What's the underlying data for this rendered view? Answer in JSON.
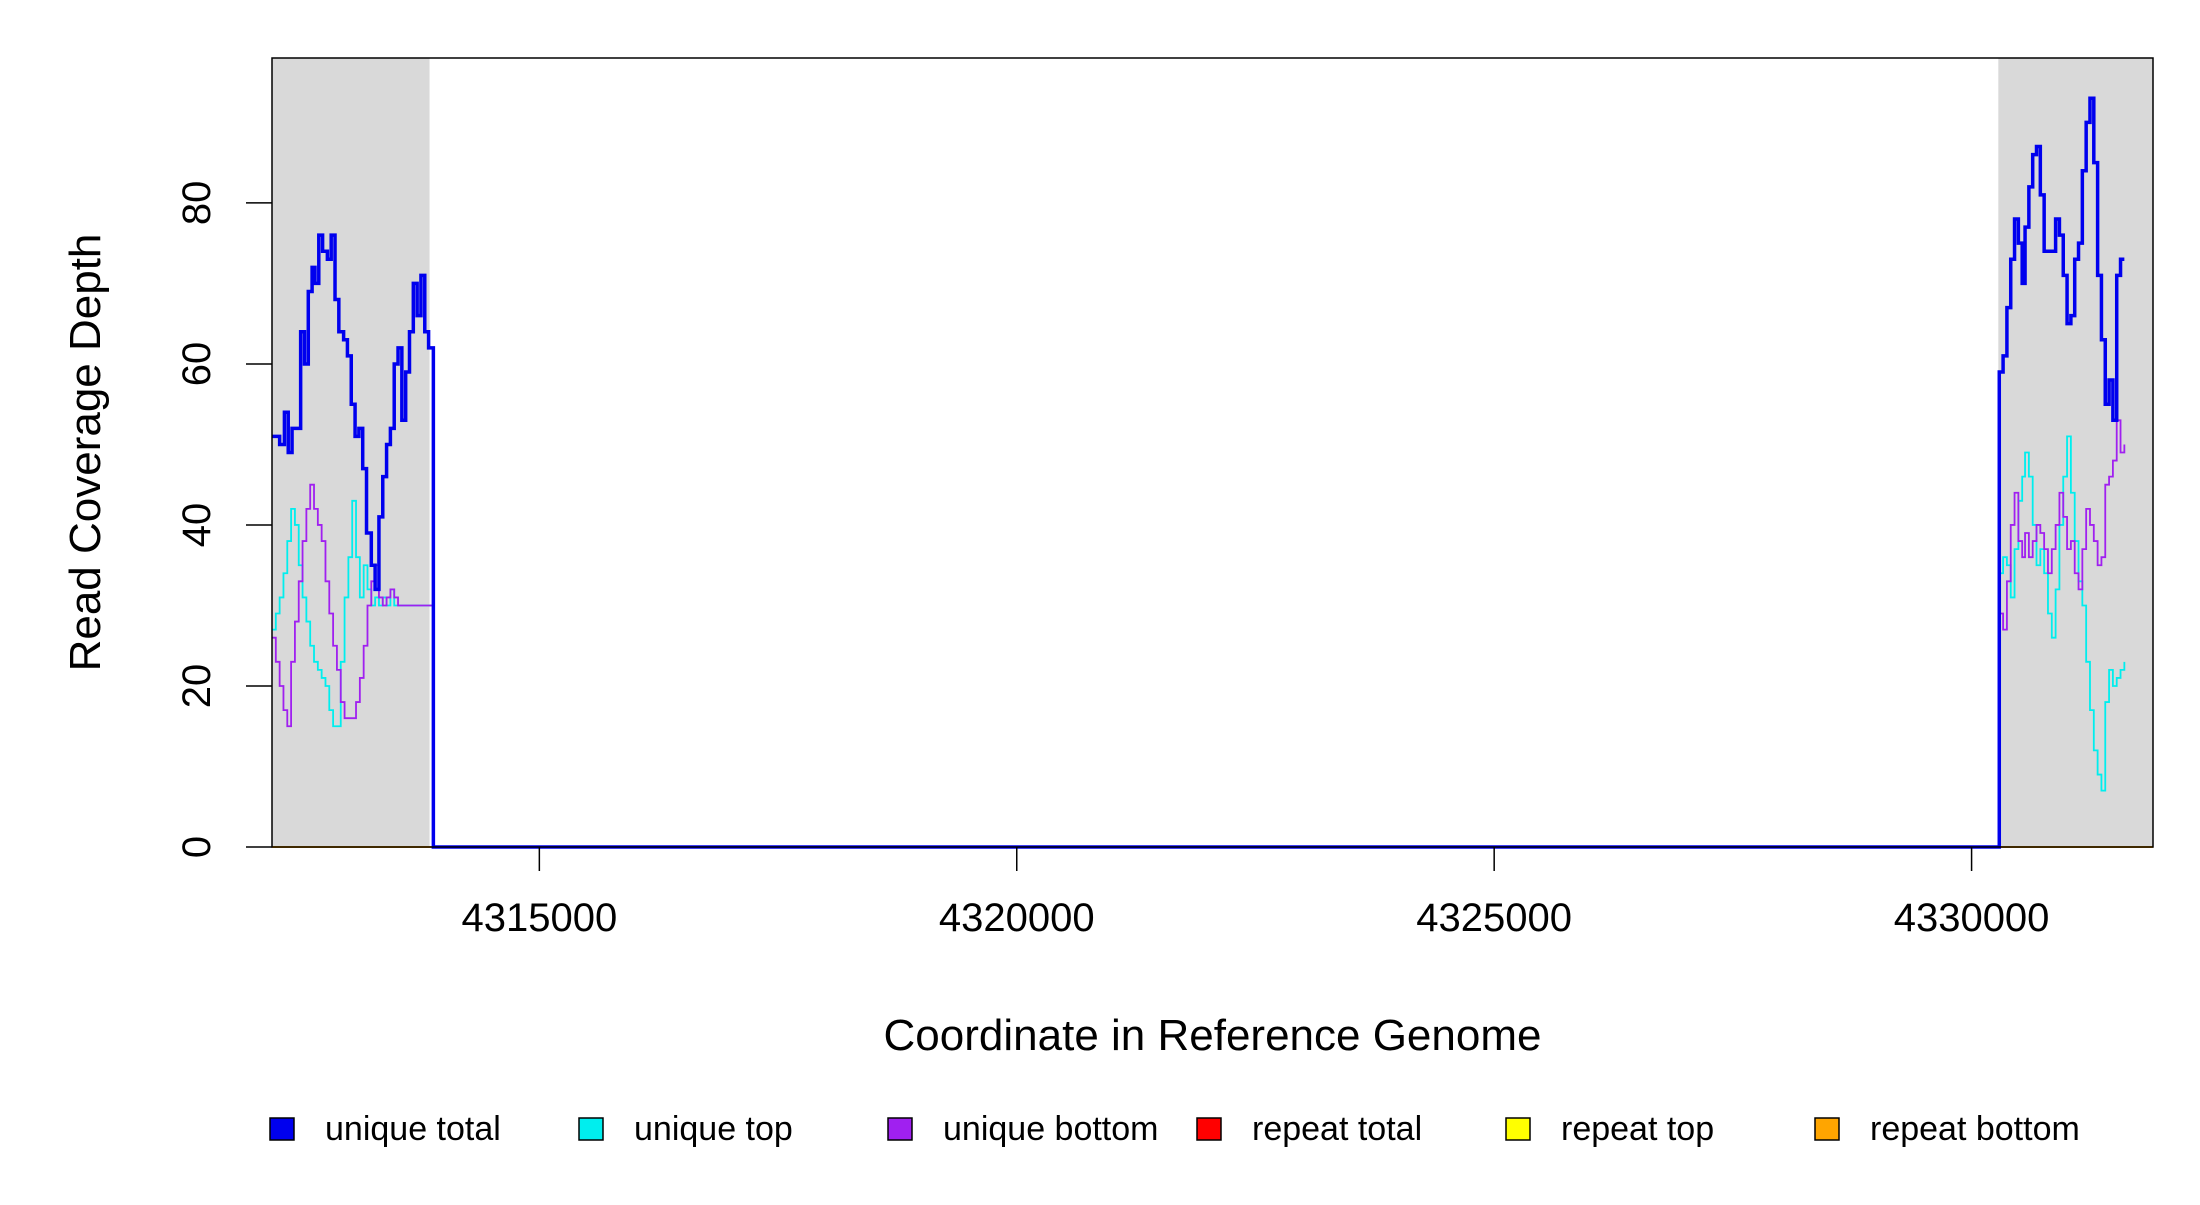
{
  "chart_data": {
    "type": "line",
    "title": "",
    "xlabel": "Coordinate in Reference Genome",
    "ylabel": "Read Coverage Depth",
    "xlim": [
      4312200,
      4331900
    ],
    "ylim": [
      0,
      98
    ],
    "x_ticks": [
      4315000,
      4320000,
      4325000,
      4330000
    ],
    "x_tick_labels": [
      "4315000",
      "4320000",
      "4325000",
      "4330000"
    ],
    "y_ticks": [
      0,
      20,
      40,
      60,
      80
    ],
    "y_tick_labels": [
      "0",
      "20",
      "40",
      "60",
      "80"
    ],
    "grid": false,
    "legend_position": "bottom",
    "shaded_regions": [
      {
        "x_start": 4312200,
        "x_end": 4313850
      },
      {
        "x_start": 4330280,
        "x_end": 4331900
      }
    ],
    "series": [
      {
        "name": "unique total",
        "color": "#0000EE",
        "points": [
          [
            4312200,
            51
          ],
          [
            4312280,
            50
          ],
          [
            4312330,
            54
          ],
          [
            4312370,
            49
          ],
          [
            4312410,
            52
          ],
          [
            4312460,
            52
          ],
          [
            4312500,
            64
          ],
          [
            4312540,
            60
          ],
          [
            4312580,
            69
          ],
          [
            4312620,
            72
          ],
          [
            4312650,
            70
          ],
          [
            4312690,
            76
          ],
          [
            4312730,
            74
          ],
          [
            4312780,
            73
          ],
          [
            4312820,
            76
          ],
          [
            4312860,
            68
          ],
          [
            4312900,
            64
          ],
          [
            4312950,
            63
          ],
          [
            4312990,
            61
          ],
          [
            4313030,
            55
          ],
          [
            4313070,
            51
          ],
          [
            4313110,
            52
          ],
          [
            4313150,
            47
          ],
          [
            4313190,
            39
          ],
          [
            4313240,
            35
          ],
          [
            4313280,
            32
          ],
          [
            4313320,
            41
          ],
          [
            4313360,
            46
          ],
          [
            4313400,
            50
          ],
          [
            4313440,
            52
          ],
          [
            4313480,
            60
          ],
          [
            4313520,
            62
          ],
          [
            4313560,
            53
          ],
          [
            4313600,
            59
          ],
          [
            4313640,
            64
          ],
          [
            4313680,
            70
          ],
          [
            4313720,
            66
          ],
          [
            4313760,
            71
          ],
          [
            4313800,
            64
          ],
          [
            4313840,
            62
          ],
          [
            4313880,
            62
          ],
          [
            4313890,
            0
          ],
          [
            4330280,
            0
          ],
          [
            4330290,
            59
          ],
          [
            4330330,
            61
          ],
          [
            4330370,
            67
          ],
          [
            4330410,
            73
          ],
          [
            4330450,
            78
          ],
          [
            4330490,
            75
          ],
          [
            4330530,
            70
          ],
          [
            4330560,
            77
          ],
          [
            4330600,
            82
          ],
          [
            4330640,
            86
          ],
          [
            4330680,
            87
          ],
          [
            4330720,
            81
          ],
          [
            4330760,
            74
          ],
          [
            4330800,
            74
          ],
          [
            4330840,
            74
          ],
          [
            4330880,
            78
          ],
          [
            4330920,
            76
          ],
          [
            4330960,
            71
          ],
          [
            4331000,
            65
          ],
          [
            4331040,
            66
          ],
          [
            4331080,
            73
          ],
          [
            4331120,
            75
          ],
          [
            4331160,
            84
          ],
          [
            4331200,
            90
          ],
          [
            4331240,
            93
          ],
          [
            4331280,
            85
          ],
          [
            4331320,
            71
          ],
          [
            4331360,
            63
          ],
          [
            4331400,
            55
          ],
          [
            4331440,
            58
          ],
          [
            4331480,
            53
          ],
          [
            4331520,
            71
          ],
          [
            4331560,
            73
          ],
          [
            4331600,
            73
          ]
        ]
      },
      {
        "name": "unique top",
        "color": "#00EEEE",
        "points": [
          [
            4312200,
            27
          ],
          [
            4312240,
            29
          ],
          [
            4312280,
            31
          ],
          [
            4312320,
            34
          ],
          [
            4312360,
            38
          ],
          [
            4312400,
            42
          ],
          [
            4312440,
            40
          ],
          [
            4312480,
            35
          ],
          [
            4312520,
            31
          ],
          [
            4312560,
            28
          ],
          [
            4312600,
            25
          ],
          [
            4312640,
            23
          ],
          [
            4312680,
            22
          ],
          [
            4312720,
            21
          ],
          [
            4312760,
            20
          ],
          [
            4312800,
            17
          ],
          [
            4312840,
            15
          ],
          [
            4312880,
            15
          ],
          [
            4312920,
            23
          ],
          [
            4312960,
            31
          ],
          [
            4313000,
            36
          ],
          [
            4313040,
            43
          ],
          [
            4313080,
            36
          ],
          [
            4313120,
            31
          ],
          [
            4313160,
            35
          ],
          [
            4313200,
            32
          ],
          [
            4313240,
            30
          ],
          [
            4313280,
            31
          ],
          [
            4313320,
            30
          ],
          [
            4313360,
            31
          ],
          [
            4313400,
            30
          ],
          [
            4313440,
            32
          ],
          [
            4313480,
            30
          ],
          [
            4313520,
            30
          ],
          [
            4313560,
            30
          ],
          [
            4313600,
            30
          ],
          [
            4313640,
            30
          ],
          [
            4313680,
            30
          ],
          [
            4313720,
            30
          ],
          [
            4313760,
            30
          ],
          [
            4313800,
            30
          ],
          [
            4313840,
            30
          ],
          [
            4313880,
            30
          ],
          [
            4313890,
            0
          ],
          [
            4330280,
            0
          ],
          [
            4330290,
            34
          ],
          [
            4330330,
            36
          ],
          [
            4330370,
            35
          ],
          [
            4330410,
            31
          ],
          [
            4330450,
            37
          ],
          [
            4330490,
            43
          ],
          [
            4330530,
            46
          ],
          [
            4330560,
            49
          ],
          [
            4330600,
            46
          ],
          [
            4330640,
            40
          ],
          [
            4330680,
            35
          ],
          [
            4330720,
            37
          ],
          [
            4330760,
            34
          ],
          [
            4330800,
            29
          ],
          [
            4330840,
            26
          ],
          [
            4330880,
            32
          ],
          [
            4330920,
            40
          ],
          [
            4330960,
            46
          ],
          [
            4331000,
            51
          ],
          [
            4331040,
            44
          ],
          [
            4331080,
            38
          ],
          [
            4331120,
            33
          ],
          [
            4331160,
            30
          ],
          [
            4331200,
            23
          ],
          [
            4331240,
            17
          ],
          [
            4331280,
            12
          ],
          [
            4331320,
            9
          ],
          [
            4331360,
            7
          ],
          [
            4331400,
            18
          ],
          [
            4331440,
            22
          ],
          [
            4331480,
            20
          ],
          [
            4331520,
            21
          ],
          [
            4331560,
            22
          ],
          [
            4331600,
            23
          ]
        ]
      },
      {
        "name": "unique bottom",
        "color": "#A020F0",
        "points": [
          [
            4312200,
            26
          ],
          [
            4312240,
            23
          ],
          [
            4312280,
            20
          ],
          [
            4312320,
            17
          ],
          [
            4312360,
            15
          ],
          [
            4312400,
            23
          ],
          [
            4312440,
            28
          ],
          [
            4312480,
            33
          ],
          [
            4312520,
            38
          ],
          [
            4312560,
            42
          ],
          [
            4312600,
            45
          ],
          [
            4312640,
            42
          ],
          [
            4312680,
            40
          ],
          [
            4312720,
            38
          ],
          [
            4312760,
            33
          ],
          [
            4312800,
            29
          ],
          [
            4312840,
            25
          ],
          [
            4312880,
            22
          ],
          [
            4312920,
            18
          ],
          [
            4312960,
            16
          ],
          [
            4313000,
            16
          ],
          [
            4313040,
            16
          ],
          [
            4313080,
            18
          ],
          [
            4313120,
            21
          ],
          [
            4313160,
            25
          ],
          [
            4313200,
            30
          ],
          [
            4313240,
            33
          ],
          [
            4313280,
            35
          ],
          [
            4313320,
            31
          ],
          [
            4313360,
            30
          ],
          [
            4313400,
            31
          ],
          [
            4313440,
            32
          ],
          [
            4313480,
            31
          ],
          [
            4313520,
            30
          ],
          [
            4313560,
            30
          ],
          [
            4313600,
            30
          ],
          [
            4313640,
            30
          ],
          [
            4313680,
            30
          ],
          [
            4313720,
            30
          ],
          [
            4313760,
            30
          ],
          [
            4313800,
            30
          ],
          [
            4313840,
            30
          ],
          [
            4313880,
            30
          ],
          [
            4313890,
            0
          ],
          [
            4330280,
            0
          ],
          [
            4330290,
            29
          ],
          [
            4330330,
            27
          ],
          [
            4330370,
            33
          ],
          [
            4330410,
            40
          ],
          [
            4330450,
            44
          ],
          [
            4330490,
            38
          ],
          [
            4330530,
            36
          ],
          [
            4330560,
            39
          ],
          [
            4330600,
            36
          ],
          [
            4330640,
            38
          ],
          [
            4330680,
            40
          ],
          [
            4330720,
            39
          ],
          [
            4330760,
            37
          ],
          [
            4330800,
            34
          ],
          [
            4330840,
            37
          ],
          [
            4330880,
            40
          ],
          [
            4330920,
            44
          ],
          [
            4330960,
            41
          ],
          [
            4331000,
            37
          ],
          [
            4331040,
            38
          ],
          [
            4331080,
            34
          ],
          [
            4331120,
            32
          ],
          [
            4331160,
            37
          ],
          [
            4331200,
            42
          ],
          [
            4331240,
            40
          ],
          [
            4331280,
            38
          ],
          [
            4331320,
            35
          ],
          [
            4331360,
            36
          ],
          [
            4331400,
            45
          ],
          [
            4331440,
            46
          ],
          [
            4331480,
            48
          ],
          [
            4331520,
            53
          ],
          [
            4331560,
            49
          ],
          [
            4331600,
            50
          ]
        ]
      },
      {
        "name": "repeat total",
        "color": "#FF0000",
        "points": [
          [
            4312200,
            0
          ],
          [
            4331900,
            0
          ]
        ]
      },
      {
        "name": "repeat top",
        "color": "#FFFF00",
        "points": [
          [
            4312200,
            0
          ],
          [
            4331900,
            0
          ]
        ]
      },
      {
        "name": "repeat bottom",
        "color": "#FFA500",
        "points": [
          [
            4312200,
            0
          ],
          [
            4331900,
            0
          ]
        ]
      }
    ]
  }
}
